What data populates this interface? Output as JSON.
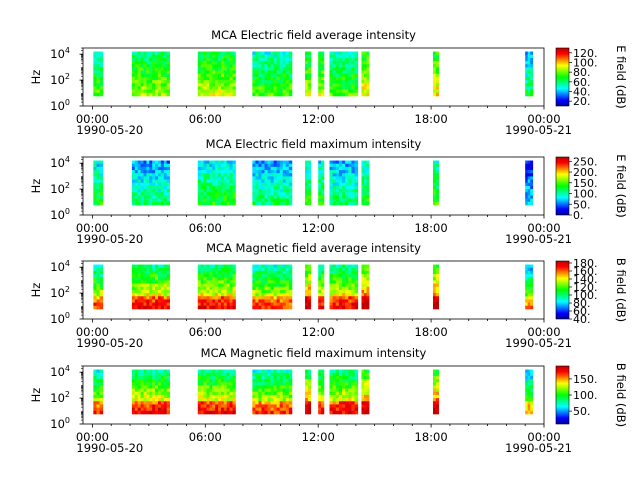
{
  "figure": {
    "background": "#ffffff",
    "colormap": [
      "#0000a0",
      "#0000ff",
      "#0080ff",
      "#00ffff",
      "#00ff80",
      "#00ff00",
      "#80ff00",
      "#ffff00",
      "#ff8000",
      "#ff0000",
      "#c00000"
    ]
  },
  "chart_data": [
    {
      "type": "heatmap",
      "title": "MCA  Electric field average intensity",
      "ylabel": "Hz",
      "yscale": "log",
      "ylim": [
        1,
        30000
      ],
      "yticks": [
        "10",
        "10",
        "10"
      ],
      "ytick_exponents": [
        "0",
        "2",
        "4"
      ],
      "xticks": [
        "00:00",
        "06:00",
        "12:00",
        "18:00",
        "00:00"
      ],
      "date_start": "1990-05-20",
      "date_end": "1990-05-21",
      "colorbar": {
        "label": "E field (dB)",
        "min": 10,
        "max": 130,
        "ticks": [
          "120.",
          "100.",
          "80.",
          "60.",
          "40.",
          "20."
        ],
        "tick_values": [
          120,
          100,
          80,
          60,
          40,
          20
        ]
      },
      "base_level": 0.6,
      "data_bins": [
        [
          0.05,
          0.55,
          0.45
        ],
        [
          2.1,
          4.1,
          0.52
        ],
        [
          5.6,
          7.6,
          0.55
        ],
        [
          8.5,
          10.6,
          0.45
        ],
        [
          11.3,
          11.6,
          0.55
        ],
        [
          12.0,
          12.3,
          0.55
        ],
        [
          12.6,
          14.1,
          0.45
        ],
        [
          14.3,
          14.7,
          0.6
        ],
        [
          18.1,
          18.4,
          0.6
        ],
        [
          23.0,
          23.4,
          0.35
        ]
      ]
    },
    {
      "type": "heatmap",
      "title": "MCA  Electric field maximum intensity",
      "ylabel": "Hz",
      "yscale": "log",
      "ylim": [
        1,
        30000
      ],
      "yticks": [
        "10",
        "10",
        "10"
      ],
      "ytick_exponents": [
        "0",
        "2",
        "4"
      ],
      "xticks": [
        "00:00",
        "06:00",
        "12:00",
        "18:00",
        "00:00"
      ],
      "date_start": "1990-05-20",
      "date_end": "1990-05-21",
      "colorbar": {
        "label": "E field (dB)",
        "min": 0,
        "max": 270,
        "ticks": [
          "250.",
          "200.",
          "150.",
          "100.",
          "50.",
          "0."
        ],
        "tick_values": [
          250,
          200,
          150,
          100,
          50,
          0
        ]
      },
      "base_level": 0.4,
      "data_bins": [
        [
          0.05,
          0.55,
          0.4
        ],
        [
          2.1,
          4.1,
          0.32
        ],
        [
          5.6,
          7.6,
          0.4
        ],
        [
          8.5,
          10.6,
          0.33
        ],
        [
          11.3,
          11.6,
          0.42
        ],
        [
          12.0,
          12.3,
          0.4
        ],
        [
          12.6,
          14.1,
          0.33
        ],
        [
          14.3,
          14.7,
          0.42
        ],
        [
          18.1,
          18.4,
          0.45
        ],
        [
          23.0,
          23.4,
          0.2
        ]
      ]
    },
    {
      "type": "heatmap",
      "title": "MCA  Magnetic field average intensity",
      "ylabel": "Hz",
      "yscale": "log",
      "ylim": [
        1,
        30000
      ],
      "yticks": [
        "10",
        "10",
        "10"
      ],
      "ytick_exponents": [
        "0",
        "2",
        "4"
      ],
      "xticks": [
        "00:00",
        "06:00",
        "12:00",
        "18:00",
        "00:00"
      ],
      "date_start": "1990-05-20",
      "date_end": "1990-05-21",
      "colorbar": {
        "label": "B field (dB)",
        "min": 40,
        "max": 185,
        "ticks": [
          "180.",
          "160.",
          "140.",
          "120.",
          "100.",
          "80.",
          "60.",
          "40."
        ],
        "tick_values": [
          180,
          160,
          140,
          120,
          100,
          80,
          60,
          40
        ]
      },
      "base_level": 0.72,
      "data_bins": [
        [
          0.05,
          0.55,
          0.55
        ],
        [
          2.1,
          4.1,
          0.6
        ],
        [
          5.6,
          7.6,
          0.6
        ],
        [
          8.5,
          10.6,
          0.55
        ],
        [
          11.3,
          11.6,
          0.7
        ],
        [
          12.0,
          12.3,
          0.6
        ],
        [
          12.6,
          14.1,
          0.6
        ],
        [
          14.3,
          14.7,
          0.72
        ],
        [
          18.1,
          18.4,
          0.72
        ],
        [
          23.0,
          23.4,
          0.45
        ]
      ]
    },
    {
      "type": "heatmap",
      "title": "MCA  Magnetic field maximum intensity",
      "ylabel": "Hz",
      "yscale": "log",
      "ylim": [
        1,
        30000
      ],
      "yticks": [
        "10",
        "10",
        "10"
      ],
      "ytick_exponents": [
        "0",
        "2",
        "4"
      ],
      "xticks": [
        "00:00",
        "06:00",
        "12:00",
        "18:00",
        "00:00"
      ],
      "date_start": "1990-05-20",
      "date_end": "1990-05-21",
      "colorbar": {
        "label": "B field (dB)",
        "min": 10,
        "max": 190,
        "ticks": [
          "150.",
          "100.",
          "50."
        ],
        "tick_values": [
          150,
          100,
          50
        ]
      },
      "base_level": 0.68,
      "data_bins": [
        [
          0.05,
          0.55,
          0.55
        ],
        [
          2.1,
          4.1,
          0.6
        ],
        [
          5.6,
          7.6,
          0.6
        ],
        [
          8.5,
          10.6,
          0.55
        ],
        [
          11.3,
          11.6,
          0.68
        ],
        [
          12.0,
          12.3,
          0.6
        ],
        [
          12.6,
          14.1,
          0.6
        ],
        [
          14.3,
          14.7,
          0.7
        ],
        [
          18.1,
          18.4,
          0.7
        ],
        [
          23.0,
          23.4,
          0.45
        ]
      ]
    }
  ]
}
